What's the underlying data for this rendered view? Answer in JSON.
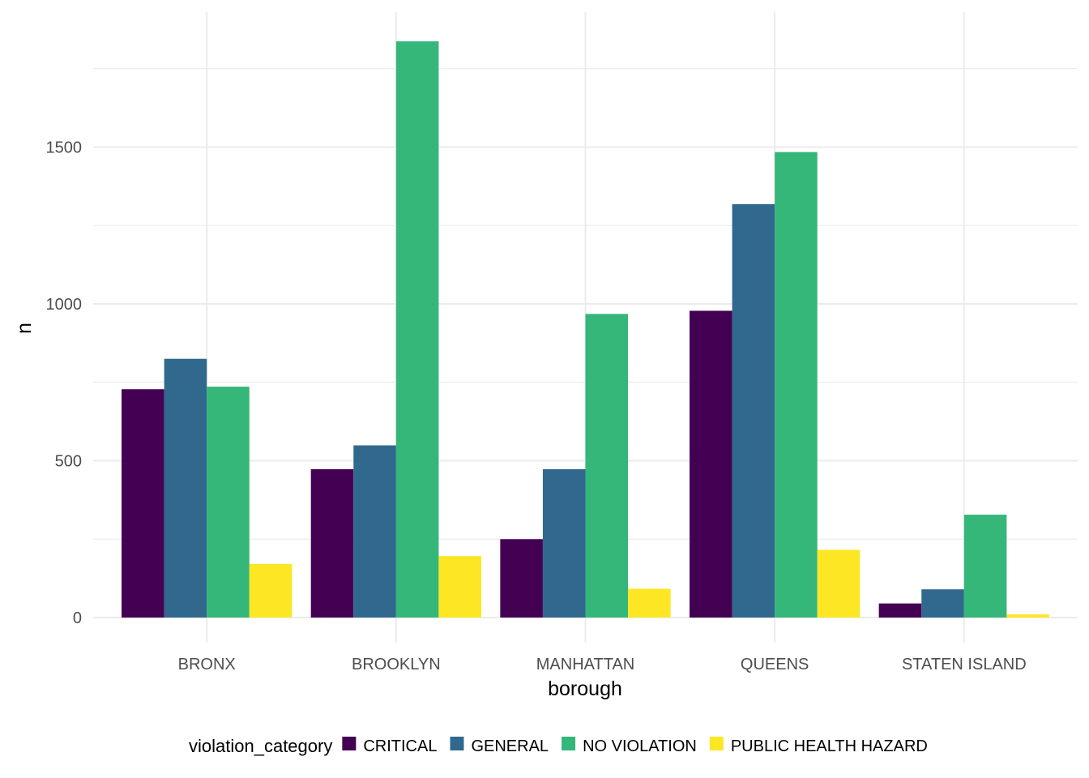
{
  "chart_data": {
    "type": "bar",
    "categories": [
      "BRONX",
      "BROOKLYN",
      "MANHATTAN",
      "QUEENS",
      "STATEN ISLAND"
    ],
    "series": [
      {
        "name": "CRITICAL",
        "color": "#440154",
        "values": [
          728,
          473,
          250,
          978,
          45
        ]
      },
      {
        "name": "GENERAL",
        "color": "#31688E",
        "values": [
          825,
          549,
          473,
          1318,
          90
        ]
      },
      {
        "name": "NO VIOLATION",
        "color": "#35B779",
        "values": [
          736,
          1837,
          968,
          1484,
          328
        ]
      },
      {
        "name": "PUBLIC HEALTH HAZARD",
        "color": "#FDE725",
        "values": [
          171,
          196,
          92,
          216,
          10
        ]
      }
    ],
    "xlabel": "borough",
    "ylabel": "n",
    "ylim": [
      -80,
      1930
    ],
    "yticks": [
      0,
      500,
      1000,
      1500
    ],
    "grid": true,
    "legend": {
      "title": "violation_category",
      "position": "bottom"
    }
  }
}
